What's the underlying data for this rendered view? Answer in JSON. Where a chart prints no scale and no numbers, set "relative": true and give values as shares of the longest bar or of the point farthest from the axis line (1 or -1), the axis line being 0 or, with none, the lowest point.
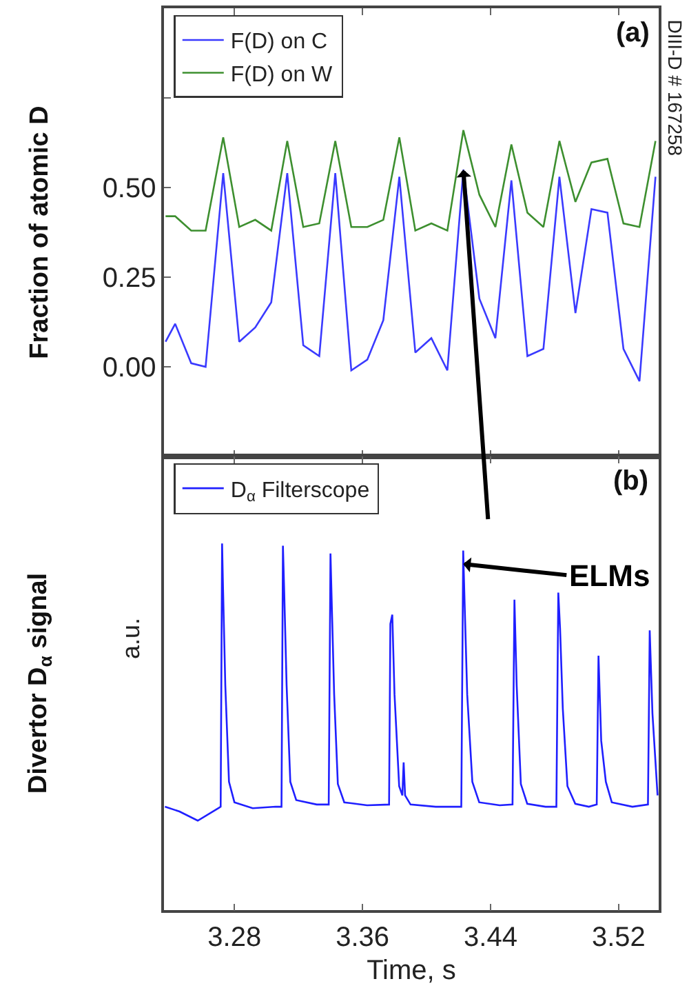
{
  "chart_data": [
    {
      "type": "line",
      "ylabel": "Fraction of atomic D",
      "legend": "top left",
      "marker": "none",
      "line_style": "solid",
      "tick_labels": "y",
      "xlim": [
        3.236,
        3.545
      ],
      "xticks": [
        3.28,
        3.36,
        3.44,
        3.52
      ],
      "ylim": [
        -0.25,
        1.0
      ],
      "yticks": [
        {
          "value": 0.0,
          "label": "0.00"
        },
        {
          "value": 0.25,
          "label": "0.25"
        },
        {
          "value": 0.5,
          "label": "0.50"
        },
        {
          "value": 0.75,
          "label": null
        }
      ],
      "x": [
        3.237,
        3.243,
        3.253,
        3.262,
        3.273,
        3.283,
        3.293,
        3.303,
        3.313,
        3.323,
        3.333,
        3.343,
        3.353,
        3.363,
        3.373,
        3.383,
        3.393,
        3.403,
        3.413,
        3.423,
        3.433,
        3.443,
        3.453,
        3.463,
        3.473,
        3.483,
        3.493,
        3.503,
        3.513,
        3.523,
        3.533,
        3.543
      ],
      "series": [
        {
          "name": "F(D) on C",
          "color": "#3a3aff",
          "values": [
            0.07,
            0.12,
            0.01,
            0.0,
            0.54,
            0.07,
            0.11,
            0.18,
            0.54,
            0.06,
            0.03,
            0.54,
            -0.01,
            0.02,
            0.13,
            0.53,
            0.04,
            0.08,
            -0.01,
            0.55,
            0.19,
            0.08,
            0.52,
            0.03,
            0.05,
            0.53,
            0.15,
            0.44,
            0.43,
            0.05,
            -0.04,
            0.53
          ]
        },
        {
          "name": "F(D) on W",
          "color": "#3d8f2f",
          "values": [
            0.42,
            0.42,
            0.38,
            0.38,
            0.64,
            0.39,
            0.41,
            0.38,
            0.63,
            0.39,
            0.4,
            0.63,
            0.39,
            0.39,
            0.41,
            0.64,
            0.38,
            0.4,
            0.38,
            0.66,
            0.48,
            0.39,
            0.62,
            0.43,
            0.39,
            0.63,
            0.46,
            0.57,
            0.58,
            0.4,
            0.39,
            0.63
          ]
        }
      ],
      "annotations": [
        "(a)",
        "DIII-D # 167258"
      ]
    },
    {
      "type": "line",
      "relative": true,
      "xlabel": "Time, s",
      "ylabel": "Divertor D$_{α}$ signal",
      "legend": "top left",
      "marker": "none",
      "line_style": "solid",
      "xlim": [
        3.236,
        3.545
      ],
      "xticks": [
        3.28,
        3.36,
        3.44,
        3.52
      ],
      "x": [
        3.2366,
        3.2457,
        3.2571,
        3.27,
        3.2714,
        3.2723,
        3.2729,
        3.2743,
        3.2766,
        3.28,
        3.2914,
        3.3057,
        3.3094,
        3.3103,
        3.3111,
        3.3126,
        3.3149,
        3.3186,
        3.3314,
        3.3389,
        3.34,
        3.3409,
        3.3423,
        3.3446,
        3.3486,
        3.3629,
        3.3766,
        3.3774,
        3.3786,
        3.38,
        3.3829,
        3.3849,
        3.3857,
        3.3866,
        3.39,
        3.4057,
        3.4217,
        3.4229,
        3.4237,
        3.4254,
        3.4286,
        3.4329,
        3.4457,
        3.4537,
        3.4549,
        3.4563,
        3.4589,
        3.4629,
        3.4743,
        3.4811,
        3.4823,
        3.4834,
        3.4851,
        3.488,
        3.4929,
        3.5014,
        3.5063,
        3.5074,
        3.5091,
        3.512,
        3.5157,
        3.5286,
        3.5383,
        3.5394,
        3.5411,
        3.5443
      ],
      "series": [
        {
          "name": "D$_{α}$ Filterscope",
          "color": "#1f1fff",
          "values": [
            0.282,
            0.269,
            0.244,
            0.278,
            0.282,
            1.0,
            0.875,
            0.613,
            0.35,
            0.294,
            0.278,
            0.282,
            0.282,
            0.994,
            0.868,
            0.613,
            0.35,
            0.3,
            0.288,
            0.288,
            0.973,
            0.819,
            0.588,
            0.344,
            0.294,
            0.286,
            0.288,
            0.781,
            0.806,
            0.588,
            0.338,
            0.313,
            0.403,
            0.313,
            0.288,
            0.282,
            0.282,
            0.981,
            0.85,
            0.588,
            0.35,
            0.294,
            0.286,
            0.288,
            0.847,
            0.613,
            0.344,
            0.29,
            0.282,
            0.282,
            0.866,
            0.769,
            0.55,
            0.338,
            0.29,
            0.282,
            0.288,
            0.694,
            0.462,
            0.35,
            0.294,
            0.282,
            0.288,
            0.763,
            0.537,
            0.313
          ]
        }
      ],
      "annotations": [
        "(b)",
        {
          "text": "ELMs",
          "x": 3.4229,
          "y": 0.944
        },
        "a.u."
      ]
    }
  ]
}
